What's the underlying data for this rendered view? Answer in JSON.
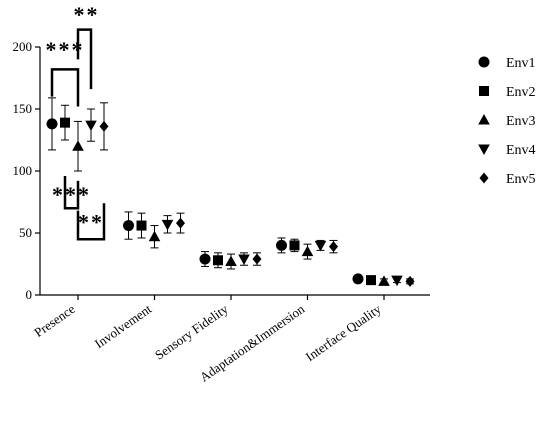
{
  "chart_data": {
    "type": "scatter",
    "title": "",
    "xlabel": "",
    "ylabel": "",
    "ylim": [
      0,
      200
    ],
    "yticks": [
      0,
      50,
      100,
      150,
      200
    ],
    "grid": false,
    "legend_position": "right",
    "categories": [
      "Presence",
      "Involvement",
      "Sensory Fidelity",
      "Adaptation&Immersion",
      "Interface Quality"
    ],
    "series": [
      {
        "name": "Env1",
        "marker": "circle",
        "values": [
          138,
          56,
          29,
          40,
          13
        ],
        "errors": [
          21,
          11,
          6,
          6,
          2
        ]
      },
      {
        "name": "Env2",
        "marker": "square",
        "values": [
          139,
          56,
          28,
          40,
          12
        ],
        "errors": [
          14,
          10,
          6,
          5,
          2
        ]
      },
      {
        "name": "Env3",
        "marker": "triangle-up",
        "values": [
          120,
          47,
          27,
          35,
          11
        ],
        "errors": [
          20,
          9,
          6,
          6,
          2
        ]
      },
      {
        "name": "Env4",
        "marker": "triangle-down",
        "values": [
          137,
          57,
          29,
          40,
          12
        ],
        "errors": [
          13,
          7,
          5,
          4,
          2
        ]
      },
      {
        "name": "Env5",
        "marker": "diamond",
        "values": [
          136,
          58,
          29,
          39,
          11
        ],
        "errors": [
          19,
          8,
          5,
          5,
          2
        ]
      }
    ],
    "significance": [
      {
        "label": "***",
        "from": "Env1",
        "to": "Env3"
      },
      {
        "label": "**",
        "from": "Env3",
        "to": "Env4"
      },
      {
        "label": "***",
        "from": "Env2",
        "to": "Env3"
      },
      {
        "label": "**",
        "from": "Env3",
        "to": "Env5"
      }
    ],
    "colors": {
      "marker": "#000000",
      "axis": "#000000"
    }
  }
}
